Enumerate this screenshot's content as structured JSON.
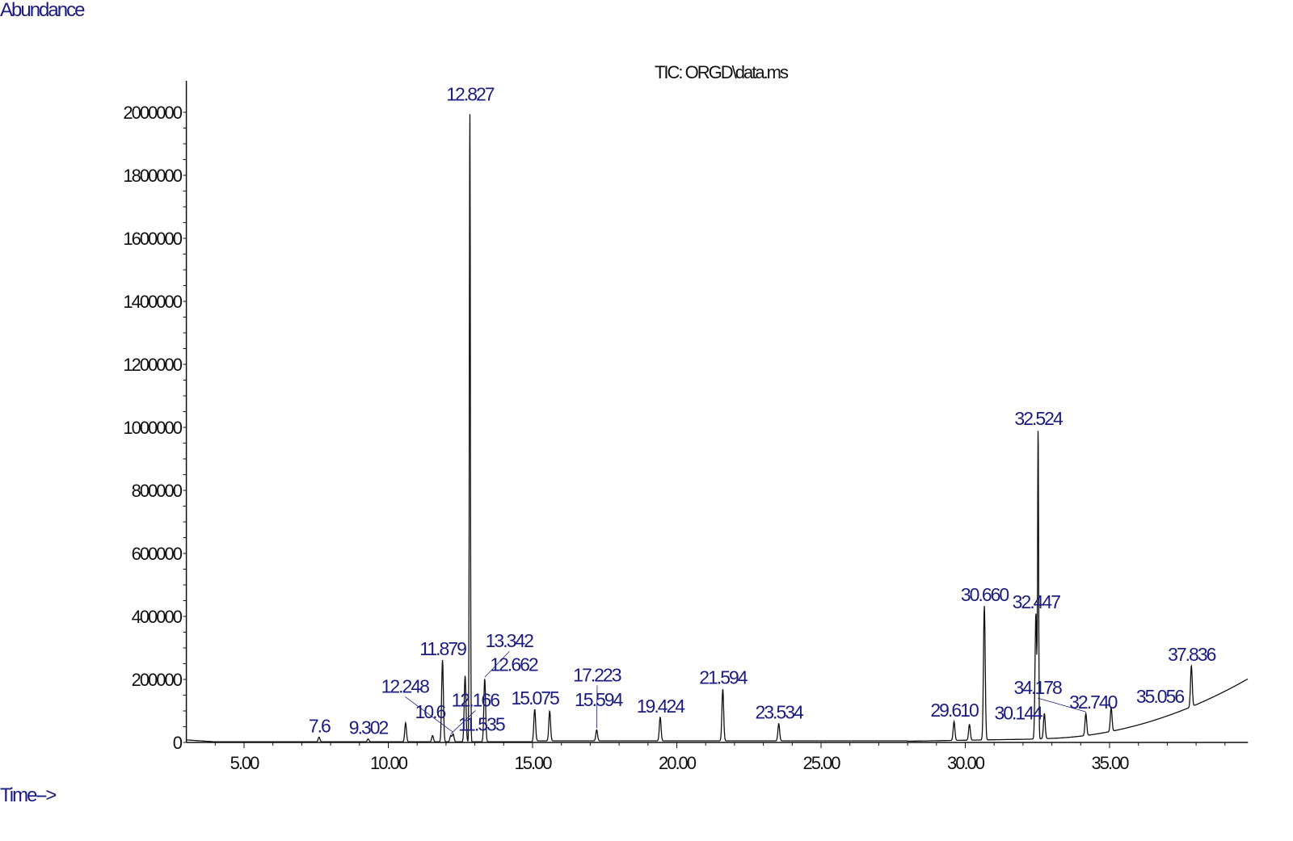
{
  "chart_data": {
    "type": "line",
    "title": "TIC: ORGD\\data.ms",
    "ylabel": "Abundance",
    "xlabel": "Time-->",
    "xlim": [
      3.0,
      39.8
    ],
    "ylim": [
      0,
      2000000
    ],
    "x_ticks": [
      "5.00",
      "10.00",
      "15.00",
      "20.00",
      "25.00",
      "30.00",
      "35.00"
    ],
    "x_tick_values": [
      5,
      10,
      15,
      20,
      25,
      30,
      35
    ],
    "y_ticks": [
      "0",
      "200000",
      "400000",
      "600000",
      "800000",
      "1000000",
      "1200000",
      "1400000",
      "1600000",
      "1800000",
      "2000000"
    ],
    "y_tick_values": [
      0,
      200000,
      400000,
      600000,
      800000,
      1000000,
      1200000,
      1400000,
      1600000,
      1800000,
      2000000
    ],
    "grid": false,
    "peaks": [
      {
        "rt": 7.6,
        "label": "7.6",
        "abundance": 15000
      },
      {
        "rt": 9.302,
        "label": "9.302",
        "abundance": 9000
      },
      {
        "rt": 10.6,
        "label": "10.6",
        "abundance": 60000
      },
      {
        "rt": 11.535,
        "label": "11.535",
        "abundance": 20000
      },
      {
        "rt": 11.879,
        "label": "11.879",
        "abundance": 260000
      },
      {
        "rt": 12.166,
        "label": "12.166",
        "abundance": 20000
      },
      {
        "rt": 12.248,
        "label": "12.248",
        "abundance": 25000
      },
      {
        "rt": 12.662,
        "label": "12.662",
        "abundance": 210000
      },
      {
        "rt": 12.827,
        "label": "12.827",
        "abundance": 2020000
      },
      {
        "rt": 13.342,
        "label": "13.342",
        "abundance": 200000
      },
      {
        "rt": 15.075,
        "label": "15.075",
        "abundance": 100000
      },
      {
        "rt": 15.594,
        "label": "15.594",
        "abundance": 95000
      },
      {
        "rt": 17.223,
        "label": "17.223",
        "abundance": 35000
      },
      {
        "rt": 19.424,
        "label": "19.424",
        "abundance": 75000
      },
      {
        "rt": 21.594,
        "label": "21.594",
        "abundance": 165000
      },
      {
        "rt": 23.534,
        "label": "23.534",
        "abundance": 55000
      },
      {
        "rt": 29.61,
        "label": "29.610",
        "abundance": 60000
      },
      {
        "rt": 30.144,
        "label": "30.144",
        "abundance": 50000
      },
      {
        "rt": 30.66,
        "label": "30.660",
        "abundance": 425000
      },
      {
        "rt": 32.447,
        "label": "32.447",
        "abundance": 400000
      },
      {
        "rt": 32.524,
        "label": "32.524",
        "abundance": 980000
      },
      {
        "rt": 32.74,
        "label": "32.740",
        "abundance": 80000
      },
      {
        "rt": 34.178,
        "label": "34.178",
        "abundance": 70000
      },
      {
        "rt": 35.056,
        "label": "35.056",
        "abundance": 75000
      },
      {
        "rt": 37.836,
        "label": "37.836",
        "abundance": 130000
      }
    ],
    "colors": {
      "trace": "#111111",
      "label": "#1c1c80"
    }
  }
}
